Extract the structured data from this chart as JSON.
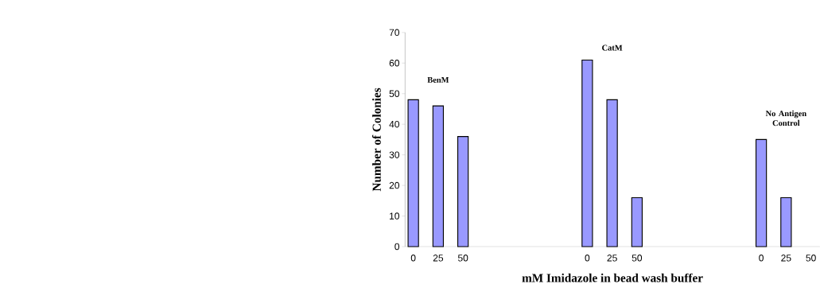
{
  "chart_data": {
    "type": "bar",
    "xlabel": "mM Imidazole in bead wash buffer",
    "ylabel": "Number of Colonies",
    "categories": [
      "0",
      "25",
      "50",
      null,
      null,
      null,
      null,
      "0",
      "25",
      "50",
      null,
      null,
      null,
      null,
      "0",
      "25",
      "50"
    ],
    "values": [
      48,
      46,
      36,
      null,
      null,
      null,
      null,
      61,
      48,
      16,
      null,
      null,
      null,
      null,
      35,
      16,
      null
    ],
    "color": "#9999ff",
    "ylim": [
      0,
      70
    ],
    "yticks": [
      0,
      10,
      20,
      30,
      40,
      50,
      60,
      70
    ],
    "annotations": [
      "BenM",
      "CatM",
      "No Antigen Control"
    ]
  }
}
